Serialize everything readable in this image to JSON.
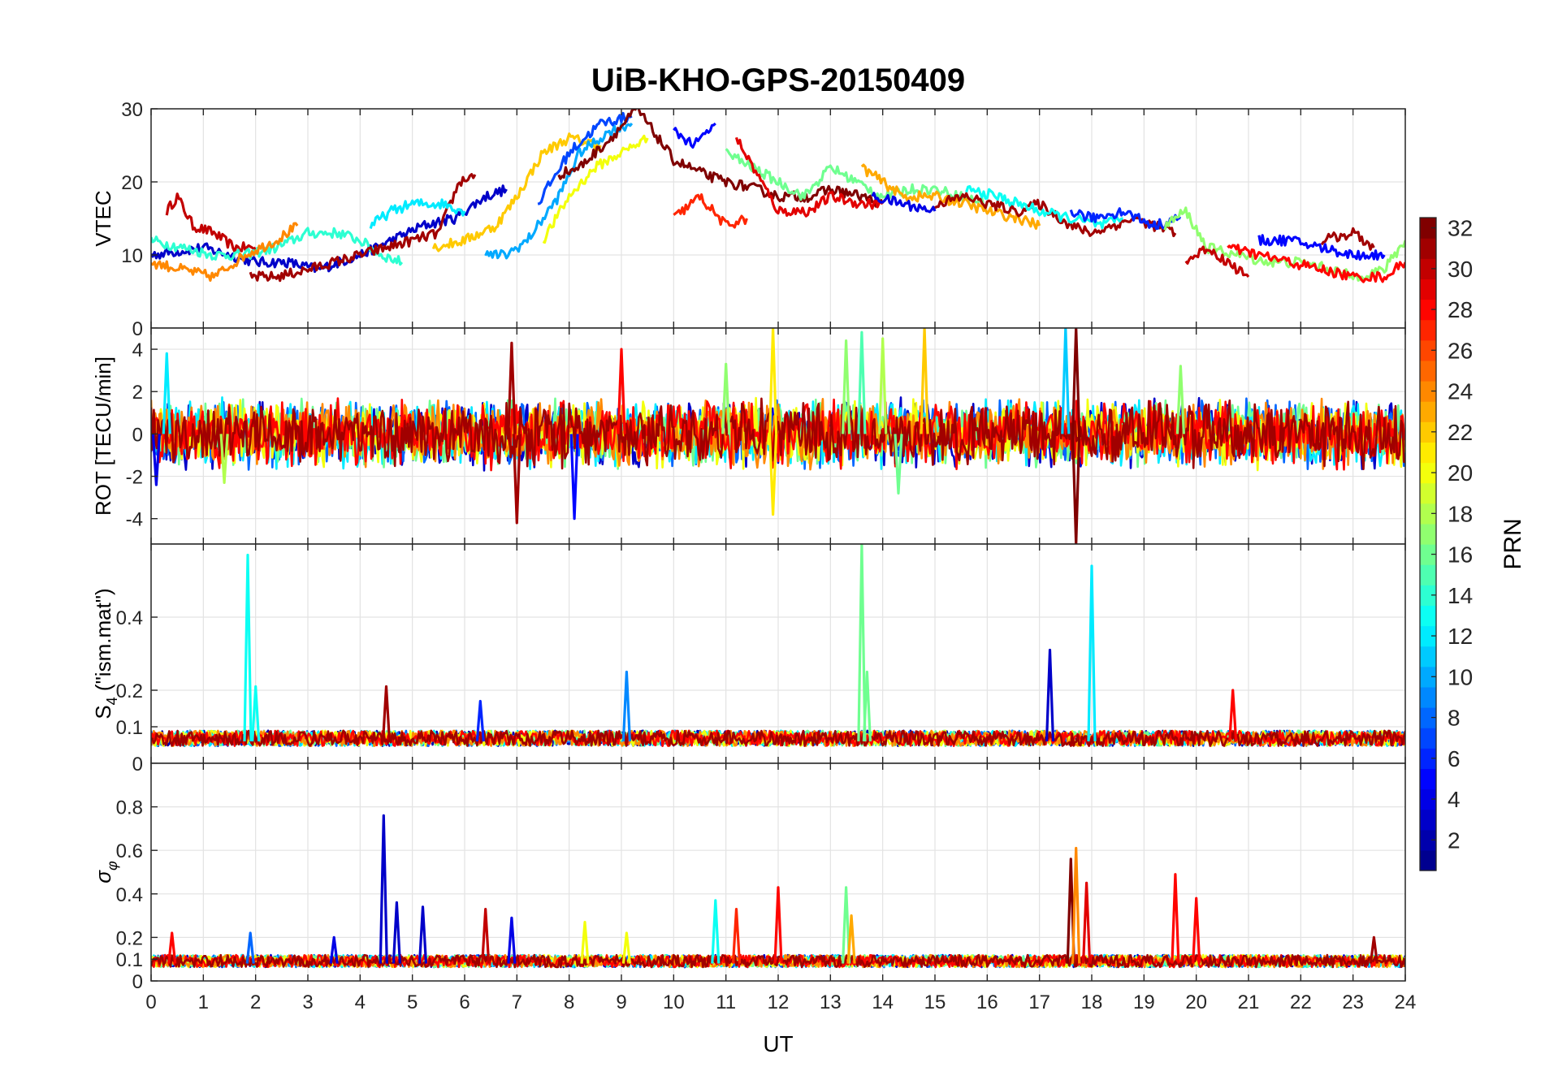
{
  "figure": {
    "title": "UiB-KHO-GPS-20150409",
    "xlabel": "UT",
    "x_ticks": [
      "0",
      "1",
      "2",
      "3",
      "4",
      "5",
      "6",
      "7",
      "8",
      "9",
      "10",
      "11",
      "12",
      "13",
      "14",
      "15",
      "16",
      "17",
      "18",
      "19",
      "20",
      "21",
      "22",
      "23",
      "24"
    ]
  },
  "colorbar": {
    "label": "PRN",
    "ticks": [
      "2",
      "4",
      "6",
      "8",
      "10",
      "12",
      "14",
      "16",
      "18",
      "20",
      "22",
      "24",
      "26",
      "28",
      "30",
      "32"
    ],
    "range": [
      1,
      32
    ],
    "colormap": "jet",
    "colors": [
      "#00008F",
      "#0000FF",
      "#0080FF",
      "#00FFFF",
      "#80FF80",
      "#FFFF00",
      "#FF8000",
      "#FF0000",
      "#800000"
    ]
  },
  "chart_data": [
    {
      "type": "line",
      "panel": "VTEC",
      "ylabel": "VTEC",
      "xlim": [
        0,
        24
      ],
      "ylim": [
        0,
        30
      ],
      "y_ticks": [
        "0",
        "10",
        "20",
        "30"
      ],
      "grid": true,
      "series": [
        {
          "prn": 30,
          "x": [
            0.3,
            0.5,
            0.8,
            1.2,
            1.6,
            2.0
          ],
          "y": [
            16,
            18,
            14,
            13,
            11,
            11
          ]
        },
        {
          "prn": 3,
          "x": [
            0,
            1,
            2,
            2.6,
            3.2,
            3.6,
            4.0,
            4.6,
            5.2,
            5.8,
            6.4,
            6.8
          ],
          "y": [
            10,
            11,
            9,
            9,
            8,
            9,
            10,
            12,
            14,
            15,
            18,
            19
          ]
        },
        {
          "prn": 14,
          "x": [
            0,
            0.6,
            1.2,
            1.8,
            2.4,
            3.0,
            3.6,
            4.0,
            4.4,
            4.8
          ],
          "y": [
            12,
            11,
            10,
            10,
            11,
            13,
            13,
            12,
            10,
            9
          ]
        },
        {
          "prn": 24,
          "x": [
            0,
            0.6,
            1.2,
            1.8,
            2.4,
            2.8
          ],
          "y": [
            9,
            8,
            7,
            10,
            12,
            14
          ]
        },
        {
          "prn": 31,
          "x": [
            1.9,
            2.4,
            3.0,
            3.5,
            4.0,
            4.5,
            5.0,
            5.5,
            5.9,
            6.2
          ],
          "y": [
            7,
            7,
            8,
            9,
            10,
            11,
            12,
            13,
            20,
            21
          ]
        },
        {
          "prn": 12,
          "x": [
            4.2,
            4.6,
            5.0,
            5.6,
            6.0
          ],
          "y": [
            14,
            16,
            17,
            17,
            16
          ]
        },
        {
          "prn": 22,
          "x": [
            5.4,
            6.0,
            6.6,
            7.0,
            7.5,
            8.0,
            8.6
          ],
          "y": [
            11,
            12,
            14,
            18,
            24,
            26,
            25
          ]
        },
        {
          "prn": 10,
          "x": [
            6.4,
            6.8,
            7.2,
            7.8,
            8.2,
            8.8,
            9.2
          ],
          "y": [
            10,
            10,
            12,
            18,
            24,
            27,
            28
          ]
        },
        {
          "prn": 7,
          "x": [
            7.4,
            8.0,
            8.6,
            9.2
          ],
          "y": [
            17,
            24,
            28,
            29
          ]
        },
        {
          "prn": 20,
          "x": [
            7.5,
            8.0,
            8.5,
            9.0,
            9.5
          ],
          "y": [
            12,
            18,
            22,
            24,
            26
          ]
        },
        {
          "prn": 32,
          "x": [
            7.8,
            8.2,
            8.8,
            9.3,
            9.6,
            10.0,
            10.6,
            11.0,
            11.6,
            12.0,
            12.6,
            13.0,
            13.6,
            14.0
          ],
          "y": [
            21,
            22,
            26,
            30,
            27,
            23,
            21,
            20,
            19,
            18,
            18,
            19,
            18,
            17
          ]
        },
        {
          "prn": 5,
          "x": [
            10.0,
            10.4,
            10.8
          ],
          "y": [
            27,
            25,
            28
          ]
        },
        {
          "prn": 27,
          "x": [
            10.0,
            10.5,
            11.0,
            11.4
          ],
          "y": [
            15,
            18,
            14,
            15
          ]
        },
        {
          "prn": 16,
          "x": [
            11.0,
            11.5,
            12.0,
            12.5,
            13.0,
            13.5,
            14.0,
            14.5,
            15.0,
            15.5,
            16.0
          ],
          "y": [
            24,
            22,
            20,
            18,
            22,
            20,
            18,
            19,
            19,
            18,
            17
          ]
        },
        {
          "prn": 29,
          "x": [
            11.2,
            11.6,
            12.0,
            12.6,
            13.0,
            13.6,
            14.0
          ],
          "y": [
            26,
            21,
            16,
            16,
            18,
            17,
            17
          ]
        },
        {
          "prn": 23,
          "x": [
            13.6,
            14.0,
            14.4,
            15.0,
            15.6,
            16.0,
            16.6,
            17.0
          ],
          "y": [
            22,
            20,
            18,
            18,
            17,
            16,
            15,
            14
          ]
        },
        {
          "prn": 4,
          "x": [
            13.8,
            14.4,
            15.0
          ],
          "y": [
            18,
            17,
            16
          ]
        },
        {
          "prn": 31,
          "x": [
            15.0,
            15.6,
            16.0,
            16.6,
            17.0,
            17.6,
            18.0,
            18.4,
            18.8,
            19.2,
            19.6
          ],
          "y": [
            17,
            18,
            17,
            16,
            17,
            14,
            13,
            14,
            15,
            14,
            13
          ]
        },
        {
          "prn": 13,
          "x": [
            15.6,
            16.2,
            17.0,
            17.6,
            18.2,
            18.6
          ],
          "y": [
            19,
            18,
            16,
            15,
            14,
            15
          ]
        },
        {
          "prn": 6,
          "x": [
            17.6,
            18.0,
            18.6,
            19.2,
            19.7
          ],
          "y": [
            16,
            15,
            16,
            14,
            15
          ]
        },
        {
          "prn": 17,
          "x": [
            19.4,
            19.8,
            20.2,
            20.8,
            21.4,
            22.0,
            22.6,
            23.0,
            23.6,
            24.0
          ],
          "y": [
            14,
            16,
            11,
            10,
            9,
            9,
            8,
            7,
            8,
            12
          ]
        },
        {
          "prn": 30,
          "x": [
            19.8,
            20.2,
            20.6,
            21.0
          ],
          "y": [
            9,
            11,
            9,
            7
          ]
        },
        {
          "prn": 5,
          "x": [
            21.2,
            21.8,
            22.4,
            23.0,
            23.6
          ],
          "y": [
            12,
            12,
            11,
            10,
            10
          ]
        },
        {
          "prn": 31,
          "x": [
            22.4,
            23.0,
            23.4
          ],
          "y": [
            12,
            13,
            11
          ]
        },
        {
          "prn": 28,
          "x": [
            20.6,
            21.2,
            21.8,
            22.4,
            23.0,
            23.6,
            24.0
          ],
          "y": [
            11,
            10,
            9,
            8,
            7,
            7,
            9
          ]
        }
      ]
    },
    {
      "type": "line",
      "panel": "ROT",
      "ylabel": "ROT [TECU/min]",
      "xlim": [
        0,
        24
      ],
      "ylim": [
        -5.2,
        5
      ],
      "y_ticks": [
        "-4",
        "-2",
        "0",
        "2",
        "4"
      ],
      "grid": true,
      "noise_series_prns": [
        3,
        8,
        12,
        16,
        20,
        24,
        28,
        31
      ],
      "spikes": [
        {
          "x": 0.3,
          "y": 3.8,
          "prn": 12
        },
        {
          "x": 0.1,
          "y": -2.4,
          "prn": 4
        },
        {
          "x": 1.4,
          "y": -2.3,
          "prn": 18
        },
        {
          "x": 6.9,
          "y": 4.3,
          "prn": 31
        },
        {
          "x": 7.0,
          "y": -4.2,
          "prn": 31
        },
        {
          "x": 8.1,
          "y": -4.0,
          "prn": 5
        },
        {
          "x": 9.0,
          "y": 4.0,
          "prn": 28
        },
        {
          "x": 11.0,
          "y": 3.3,
          "prn": 17
        },
        {
          "x": 11.9,
          "y": 5.0,
          "prn": 21
        },
        {
          "x": 11.9,
          "y": -3.8,
          "prn": 21
        },
        {
          "x": 13.3,
          "y": 4.4,
          "prn": 17
        },
        {
          "x": 13.6,
          "y": 4.8,
          "prn": 15
        },
        {
          "x": 14.0,
          "y": 4.5,
          "prn": 18
        },
        {
          "x": 14.8,
          "y": 5.0,
          "prn": 22
        },
        {
          "x": 14.3,
          "y": -2.8,
          "prn": 16
        },
        {
          "x": 17.5,
          "y": 5.0,
          "prn": 11
        },
        {
          "x": 17.7,
          "y": 5.0,
          "prn": 32
        },
        {
          "x": 17.7,
          "y": -5.2,
          "prn": 32
        },
        {
          "x": 19.7,
          "y": 3.2,
          "prn": 17
        }
      ]
    },
    {
      "type": "line",
      "panel": "S4",
      "ylabel": "S4 (\"ism.mat\")",
      "ylabel_main": "S",
      "ylabel_sub": "4",
      "ylabel_rest": " (\"ism.mat\")",
      "xlim": [
        0,
        24
      ],
      "ylim": [
        0,
        0.6
      ],
      "y_ticks": [
        "0",
        "0.1",
        "0.2",
        "0.4"
      ],
      "grid": true,
      "baseline": 0.06,
      "noise_series_prns": [
        2,
        8,
        12,
        16,
        20,
        24,
        28,
        31
      ],
      "spikes": [
        {
          "x": 1.85,
          "y": 0.57,
          "prn": 13
        },
        {
          "x": 2.0,
          "y": 0.21,
          "prn": 13
        },
        {
          "x": 4.5,
          "y": 0.21,
          "prn": 31
        },
        {
          "x": 6.3,
          "y": 0.17,
          "prn": 6
        },
        {
          "x": 9.1,
          "y": 0.25,
          "prn": 9
        },
        {
          "x": 13.6,
          "y": 0.6,
          "prn": 16
        },
        {
          "x": 13.7,
          "y": 0.25,
          "prn": 16
        },
        {
          "x": 17.2,
          "y": 0.31,
          "prn": 3
        },
        {
          "x": 18.0,
          "y": 0.54,
          "prn": 12
        },
        {
          "x": 20.7,
          "y": 0.2,
          "prn": 28
        }
      ]
    },
    {
      "type": "line",
      "panel": "sigma_phi",
      "ylabel": "σφ",
      "ylabel_main": "σ",
      "ylabel_sub": "φ",
      "xlim": [
        0,
        24
      ],
      "ylim": [
        0,
        1
      ],
      "y_ticks": [
        "0",
        "0.1",
        "0.2",
        "0.4",
        "0.6",
        "0.8"
      ],
      "grid": true,
      "baseline": 0.08,
      "noise_series_prns": [
        3,
        8,
        12,
        16,
        20,
        24,
        28,
        31
      ],
      "spikes": [
        {
          "x": 0.4,
          "y": 0.22,
          "prn": 28
        },
        {
          "x": 1.9,
          "y": 0.22,
          "prn": 8
        },
        {
          "x": 3.5,
          "y": 0.2,
          "prn": 4
        },
        {
          "x": 4.45,
          "y": 0.76,
          "prn": 3
        },
        {
          "x": 4.7,
          "y": 0.36,
          "prn": 3
        },
        {
          "x": 5.2,
          "y": 0.34,
          "prn": 3
        },
        {
          "x": 6.4,
          "y": 0.33,
          "prn": 30
        },
        {
          "x": 6.9,
          "y": 0.29,
          "prn": 4
        },
        {
          "x": 8.3,
          "y": 0.27,
          "prn": 20
        },
        {
          "x": 9.1,
          "y": 0.22,
          "prn": 20
        },
        {
          "x": 10.8,
          "y": 0.37,
          "prn": 13
        },
        {
          "x": 11.2,
          "y": 0.33,
          "prn": 27
        },
        {
          "x": 12.0,
          "y": 0.43,
          "prn": 28
        },
        {
          "x": 13.3,
          "y": 0.43,
          "prn": 16
        },
        {
          "x": 13.4,
          "y": 0.3,
          "prn": 23
        },
        {
          "x": 17.6,
          "y": 0.56,
          "prn": 32
        },
        {
          "x": 17.7,
          "y": 0.61,
          "prn": 24
        },
        {
          "x": 17.9,
          "y": 0.45,
          "prn": 29
        },
        {
          "x": 19.6,
          "y": 0.49,
          "prn": 28
        },
        {
          "x": 20.0,
          "y": 0.38,
          "prn": 28
        },
        {
          "x": 23.4,
          "y": 0.2,
          "prn": 31
        }
      ]
    }
  ]
}
